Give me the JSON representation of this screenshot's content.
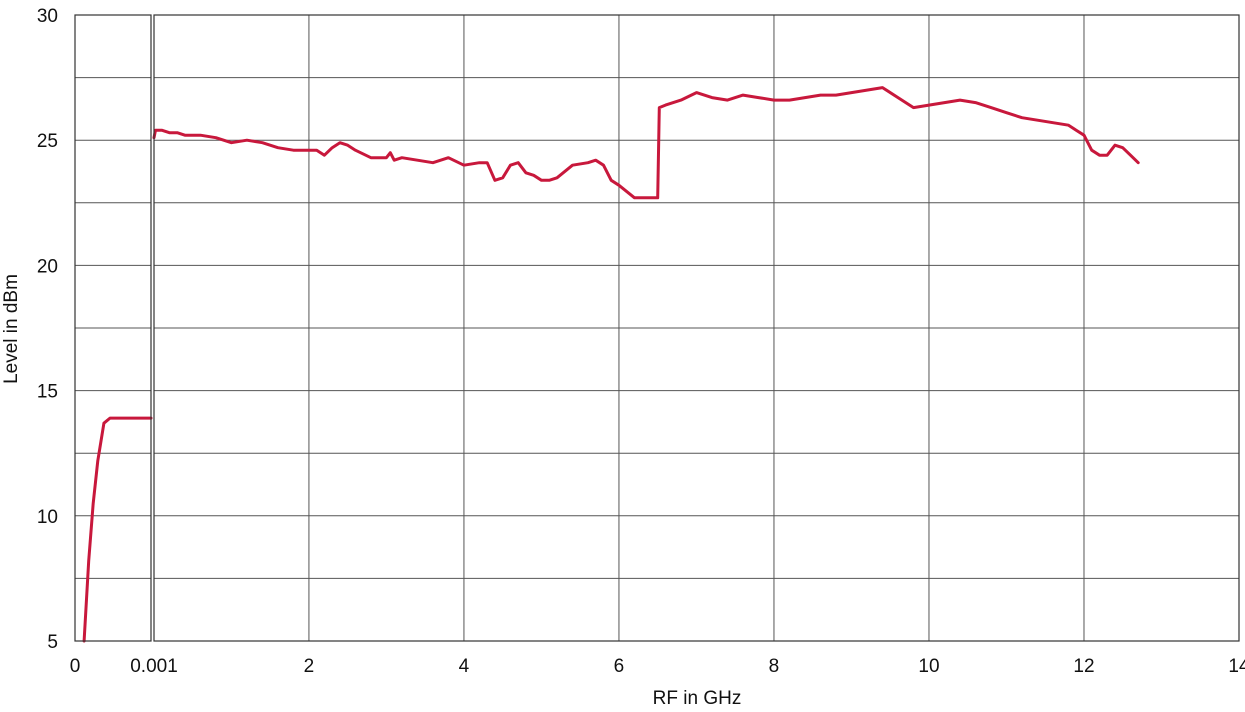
{
  "colors": {
    "series": "#c8183c",
    "grid": "#555555",
    "background": "#ffffff"
  },
  "chart_data": {
    "type": "line",
    "title": "",
    "xlabel": "RF in GHz",
    "ylabel": "Level in dBm",
    "ylim": [
      5,
      30
    ],
    "yticks": [
      "5",
      "10",
      "15",
      "20",
      "25",
      "30"
    ],
    "grid": true,
    "legend": "none",
    "panels": [
      {
        "name": "low-range",
        "xlim": [
          0,
          0.001
        ],
        "xticks": [
          {
            "value": 0,
            "label": "0"
          }
        ],
        "series": [
          {
            "x": [
              0.00012,
              0.00018,
              0.00024,
              0.0003,
              0.00038,
              0.00046,
              0.0006,
              0.00075,
              0.001
            ],
            "y": [
              5.0,
              8.2,
              10.5,
              12.2,
              13.7,
              13.9,
              13.9,
              13.9,
              13.9
            ]
          }
        ]
      },
      {
        "name": "main-range",
        "xlim": [
          0.001,
          14
        ],
        "xticks": [
          {
            "value": 0.001,
            "label": "0.001"
          },
          {
            "value": 2,
            "label": "2"
          },
          {
            "value": 4,
            "label": "4"
          },
          {
            "value": 6,
            "label": "6"
          },
          {
            "value": 8,
            "label": "8"
          },
          {
            "value": 10,
            "label": "10"
          },
          {
            "value": 12,
            "label": "12"
          },
          {
            "value": 14,
            "label": "14"
          }
        ],
        "series": [
          {
            "x": [
              0.001,
              0.02,
              0.1,
              0.2,
              0.3,
              0.4,
              0.5,
              0.6,
              0.8,
              1.0,
              1.2,
              1.4,
              1.6,
              1.8,
              2.0,
              2.1,
              2.2,
              2.3,
              2.4,
              2.5,
              2.6,
              2.8,
              3.0,
              3.05,
              3.1,
              3.2,
              3.4,
              3.6,
              3.8,
              4.0,
              4.2,
              4.3,
              4.4,
              4.5,
              4.6,
              4.7,
              4.8,
              4.9,
              5.0,
              5.1,
              5.2,
              5.4,
              5.6,
              5.7,
              5.8,
              5.9,
              6.0,
              6.2,
              6.3,
              6.5,
              6.52,
              6.6,
              6.8,
              7.0,
              7.2,
              7.4,
              7.6,
              7.8,
              8.0,
              8.2,
              8.4,
              8.6,
              8.8,
              9.0,
              9.2,
              9.4,
              9.6,
              9.8,
              10.0,
              10.2,
              10.4,
              10.6,
              10.8,
              11.0,
              11.2,
              11.4,
              11.6,
              11.8,
              11.9,
              12.0,
              12.1,
              12.2,
              12.3,
              12.4,
              12.5,
              12.6,
              12.7
            ],
            "y": [
              25.1,
              25.4,
              25.4,
              25.3,
              25.3,
              25.2,
              25.2,
              25.2,
              25.1,
              24.9,
              25.0,
              24.9,
              24.7,
              24.6,
              24.6,
              24.6,
              24.4,
              24.7,
              24.9,
              24.8,
              24.6,
              24.3,
              24.3,
              24.5,
              24.2,
              24.3,
              24.2,
              24.1,
              24.3,
              24.0,
              24.1,
              24.1,
              23.4,
              23.5,
              24.0,
              24.1,
              23.7,
              23.6,
              23.4,
              23.4,
              23.5,
              24.0,
              24.1,
              24.2,
              24.0,
              23.4,
              23.2,
              22.7,
              22.7,
              22.7,
              26.3,
              26.4,
              26.6,
              26.9,
              26.7,
              26.6,
              26.8,
              26.7,
              26.6,
              26.6,
              26.7,
              26.8,
              26.8,
              26.9,
              27.0,
              27.1,
              26.7,
              26.3,
              26.4,
              26.5,
              26.6,
              26.5,
              26.3,
              26.1,
              25.9,
              25.8,
              25.7,
              25.6,
              25.4,
              25.2,
              24.6,
              24.4,
              24.4,
              24.8,
              24.7,
              24.4,
              24.1
            ]
          }
        ]
      }
    ]
  }
}
